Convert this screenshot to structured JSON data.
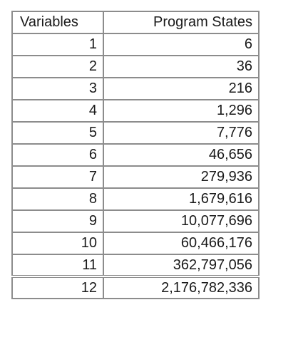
{
  "table": {
    "headers": [
      "Variables",
      "Program States"
    ],
    "rows": [
      [
        "1",
        "6"
      ],
      [
        "2",
        "36"
      ],
      [
        "3",
        "216"
      ],
      [
        "4",
        "1,296"
      ],
      [
        "5",
        "7,776"
      ],
      [
        "6",
        "46,656"
      ],
      [
        "7",
        "279,936"
      ],
      [
        "8",
        "1,679,616"
      ],
      [
        "9",
        "10,077,696"
      ],
      [
        "10",
        "60,466,176"
      ],
      [
        "11",
        "362,797,056"
      ],
      [
        "12",
        "2,176,782,336"
      ]
    ]
  }
}
